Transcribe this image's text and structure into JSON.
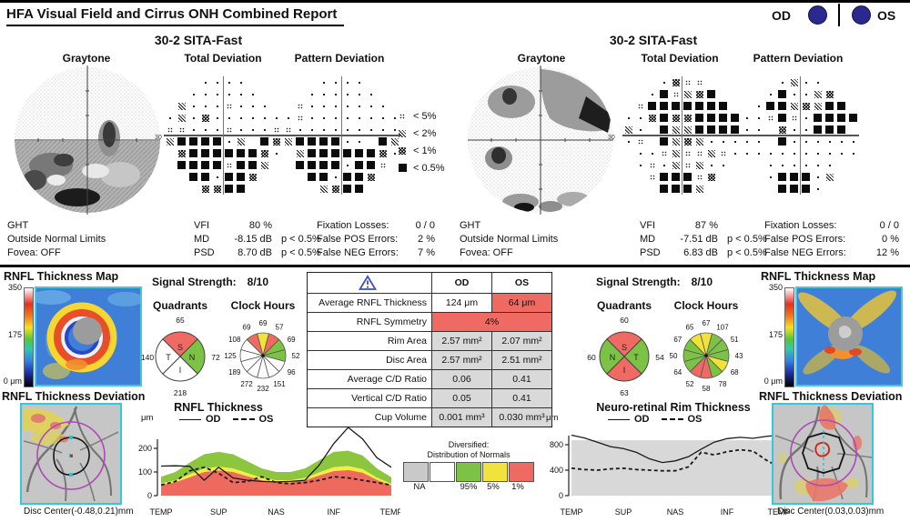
{
  "header": {
    "title": "HFA Visual Field and Cirrus ONH Combined Report",
    "od_label": "OD",
    "os_label": "OS"
  },
  "vf_legend": {
    "items": [
      {
        "sym": "5",
        "label": "< 5%"
      },
      {
        "sym": "2",
        "label": "< 2%"
      },
      {
        "sym": "1",
        "label": "< 1%"
      },
      {
        "sym": "0",
        "label": "< 0.5%"
      }
    ]
  },
  "vf": {
    "od": {
      "protocol": "30-2 SITA-Fast",
      "graytone_label": "Graytone",
      "td_label": "Total Deviation",
      "pd_label": "Pattern Deviation",
      "axis_label": "30",
      "ght_label": "GHT",
      "ght_result": "Outside Normal Limits",
      "fovea": "Fovea: OFF",
      "vfi_label": "VFI",
      "vfi": "80 %",
      "md_label": "MD",
      "md": "-8.15 dB",
      "md_p": "p < 0.5%",
      "psd_label": "PSD",
      "psd": "8.70 dB",
      "psd_p": "p < 0.5%",
      "fixation_label": "Fixation Losses:",
      "fixation": "0 / 0",
      "fpos_label": "False POS Errors:",
      "fpos": "2 %",
      "fneg_label": "False NEG Errors:",
      "fneg": "7 %",
      "td_grid": [
        "   ....   ",
        "  ......  ",
        " 2...5... ",
        ".2.1......",
        "55...5...5",
        "20000.2 01",
        " 10000001.",
        " 00005002 ",
        "  00.001  ",
        "   1100   "
      ],
      "pd_grid": [
        "   ....   ",
        "  ......  ",
        " 5....... ",
        ".5........",
        "5.........",
        "20000.. 02",
        " 20000001.",
        " 0000.005 ",
        "  00.001  ",
        "   2100   "
      ]
    },
    "os": {
      "protocol": "30-2 SITA-Fast",
      "graytone_label": "Graytone",
      "td_label": "Total Deviation",
      "pd_label": "Pattern Deviation",
      "axis_label": "30",
      "ght_label": "GHT",
      "ght_result": "Outside Normal Limits",
      "fovea": "Fovea: OFF",
      "vfi_label": "VFI",
      "vfi": "87 %",
      "md_label": "MD",
      "md": "-7.51 dB",
      "md_p": "p < 0.5%",
      "psd_label": "PSD",
      "psd": "6.83 dB",
      "psd_p": "p < 0.5%",
      "fixation_label": "Fixation Losses:",
      "fixation": "0 / 0",
      "fpos_label": "False POS Errors:",
      "fpos": "0 %",
      "fneg_label": "False NEG Errors:",
      "fneg": "12 %",
      "td_grid": [
        "   .155   ",
        "  .05210  ",
        " 50000000 ",
        "..10110000",
        "2. 0220000",
        ".5 0212...",
        " ..525525.",
        " .5.252.. ",
        "  500051  ",
        "   0002   "
      ],
      "pd_grid": [
        "   .2..   ",
        "  .0..21  ",
        " .0021200 ",
        "..505.0000",
        ".. 1..000 ",
        ".. 0......",
        "..........",
        "  ......  ",
        "  .000.2  ",
        "   000.   "
      ]
    }
  },
  "onh": {
    "od": {
      "map_title": "RNFL Thickness Map",
      "scale_top": "350",
      "scale_mid": "175",
      "scale_bottom": "0 μm",
      "signal_label": "Signal Strength:",
      "signal_value": "8/10",
      "quadrants_title": "Quadrants",
      "clock_title": "Clock Hours",
      "quadrants": [
        {
          "pos": "top",
          "label": "S",
          "value": "65",
          "color": "#ef6a62"
        },
        {
          "pos": "right",
          "label": "N",
          "value": "72",
          "color": "#7cc244"
        },
        {
          "pos": "bottom",
          "label": "I",
          "value": "218",
          "color": "#ffffff"
        },
        {
          "pos": "left",
          "label": "T",
          "value": "140",
          "color": "#ffffff"
        }
      ],
      "clock_hours": [
        {
          "v": "69",
          "c": "#f2e23c"
        },
        {
          "v": "57",
          "c": "#ef6a62"
        },
        {
          "v": "69",
          "c": "#7cc244"
        },
        {
          "v": "52",
          "c": "#7cc244"
        },
        {
          "v": "96",
          "c": "#ffffff"
        },
        {
          "v": "151",
          "c": "#ffffff"
        },
        {
          "v": "232",
          "c": "#ffffff"
        },
        {
          "v": "272",
          "c": "#ffffff"
        },
        {
          "v": "189",
          "c": "#ffffff"
        },
        {
          "v": "125",
          "c": "#ffffff"
        },
        {
          "v": "108",
          "c": "#ffffff"
        },
        {
          "v": "69",
          "c": "#ef6a62"
        }
      ],
      "dev_title": "RNFL Thickness Deviation",
      "disc_center": "Disc Center(-0.48,0.21)mm"
    },
    "os": {
      "map_title": "RNFL Thickness Map",
      "scale_top": "350",
      "scale_mid": "175",
      "scale_bottom": "0 μm",
      "signal_label": "Signal Strength:",
      "signal_value": "8/10",
      "quadrants_title": "Quadrants",
      "clock_title": "Clock Hours",
      "quadrants": [
        {
          "pos": "top",
          "label": "S",
          "value": "60",
          "color": "#ef6a62"
        },
        {
          "pos": "right",
          "label": "T",
          "value": "54",
          "color": "#7cc244"
        },
        {
          "pos": "bottom",
          "label": "I",
          "value": "63",
          "color": "#ef6a62"
        },
        {
          "pos": "left",
          "label": "N",
          "value": "60",
          "color": "#7cc244"
        }
      ],
      "clock_hours": [
        {
          "v": "67",
          "c": "#f2e23c"
        },
        {
          "v": "107",
          "c": "#7cc244"
        },
        {
          "v": "51",
          "c": "#7cc244"
        },
        {
          "v": "43",
          "c": "#7cc244"
        },
        {
          "v": "68",
          "c": "#f2e23c"
        },
        {
          "v": "78",
          "c": "#7cc244"
        },
        {
          "v": "58",
          "c": "#ef6a62"
        },
        {
          "v": "52",
          "c": "#ef6a62"
        },
        {
          "v": "64",
          "c": "#7cc244"
        },
        {
          "v": "50",
          "c": "#7cc244"
        },
        {
          "v": "67",
          "c": "#7cc244"
        },
        {
          "v": "65",
          "c": "#f2e23c"
        }
      ],
      "dev_title": "RNFL Thickness Deviation",
      "disc_center": "Disc Center(0.03,0.03)mm"
    }
  },
  "table": {
    "columns": [
      "OD",
      "OS"
    ],
    "rows": [
      {
        "label": "Average RNFL Thickness",
        "od": "124 μm",
        "os": "64 μm",
        "od_bg": "#ffffff",
        "os_bg": "#ef6a62"
      },
      {
        "label": "RNFL Symmetry",
        "span": "4%",
        "span_bg": "#ef6a62"
      },
      {
        "label": "Rim Area",
        "od": "2.57 mm²",
        "os": "2.07 mm²",
        "od_bg": "#d9d9d9",
        "os_bg": "#d9d9d9"
      },
      {
        "label": "Disc Area",
        "od": "2.57 mm²",
        "os": "2.51 mm²",
        "od_bg": "#d9d9d9",
        "os_bg": "#d9d9d9"
      },
      {
        "label": "Average C/D Ratio",
        "od": "0.06",
        "os": "0.41",
        "od_bg": "#d9d9d9",
        "os_bg": "#d9d9d9"
      },
      {
        "label": "Vertical C/D Ratio",
        "od": "0.05",
        "os": "0.41",
        "od_bg": "#d9d9d9",
        "os_bg": "#d9d9d9"
      },
      {
        "label": "Cup Volume",
        "od": "0.001 mm³",
        "os": "0.030 mm³",
        "od_bg": "#d9d9d9",
        "os_bg": "#d9d9d9"
      }
    ]
  },
  "normals_legend": {
    "title": "Diversified:",
    "subtitle": "Distribution of Normals",
    "swatches": [
      {
        "color": "#c9c9c9",
        "label": "NA"
      },
      {
        "color": "#ffffff",
        "label": ""
      },
      {
        "color": "#7cc244",
        "label": "95%"
      },
      {
        "color": "#f2e23c",
        "label": "5%"
      },
      {
        "color": "#ef6a62",
        "label": "1%"
      }
    ]
  },
  "chart_data": [
    {
      "type": "line",
      "title": "RNFL Thickness",
      "ylabel": "μm",
      "yticks": [
        0,
        100,
        200
      ],
      "ylim": [
        0,
        330
      ],
      "categories": [
        "TEMP",
        "SUP",
        "NAS",
        "INF",
        "TEMP"
      ],
      "series": [
        {
          "name": "OD",
          "style": "solid",
          "values": [
            125,
            126,
            124,
            65,
            120,
            75,
            65,
            60,
            58,
            60,
            65,
            130,
            220,
            290,
            240,
            160,
            120
          ]
        },
        {
          "name": "OS",
          "style": "dashed",
          "values": [
            45,
            60,
            105,
            120,
            95,
            55,
            60,
            80,
            55,
            50,
            55,
            65,
            80,
            75,
            65,
            55,
            45
          ]
        }
      ],
      "bands": {
        "green_top": [
          80,
          100,
          140,
          175,
          185,
          175,
          145,
          115,
          100,
          100,
          115,
          150,
          185,
          190,
          170,
          115,
          78
        ],
        "yellow_top": [
          52,
          65,
          90,
          115,
          122,
          115,
          95,
          75,
          65,
          65,
          75,
          98,
          120,
          125,
          112,
          76,
          50
        ],
        "red_top": [
          45,
          56,
          78,
          100,
          106,
          100,
          82,
          65,
          56,
          56,
          65,
          85,
          104,
          108,
          97,
          66,
          43
        ]
      }
    },
    {
      "type": "line",
      "title": "Neuro-retinal Rim Thickness",
      "ylabel": "μm",
      "yticks": [
        0,
        400,
        800
      ],
      "ylim": [
        0,
        1100
      ],
      "categories": [
        "TEMP",
        "SUP",
        "NAS",
        "INF",
        "TEMP"
      ],
      "series": [
        {
          "name": "OD",
          "style": "solid",
          "values": [
            950,
            905,
            840,
            770,
            740,
            680,
            580,
            520,
            545,
            610,
            730,
            840,
            895,
            915,
            900,
            930,
            950
          ]
        },
        {
          "name": "OS",
          "style": "dashed",
          "values": [
            430,
            410,
            400,
            420,
            430,
            410,
            400,
            390,
            390,
            450,
            680,
            640,
            690,
            720,
            700,
            560,
            450
          ]
        }
      ],
      "band": {
        "color": "#d8d8d8",
        "top": 870
      }
    }
  ]
}
